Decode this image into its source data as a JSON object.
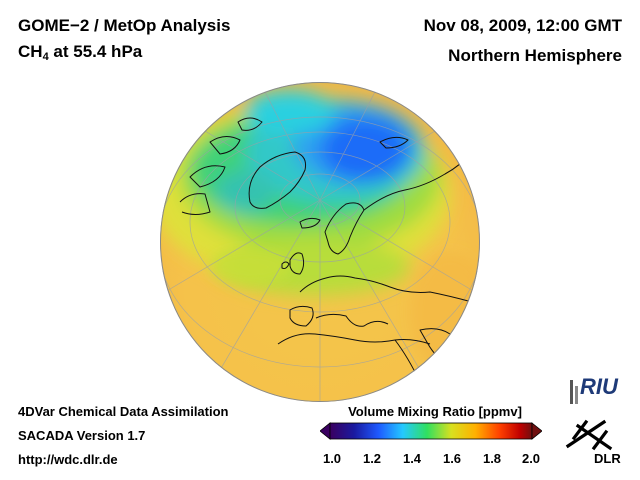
{
  "header": {
    "title_line1": "GOME−2 / MetOp Analysis",
    "title_line2_prefix": "CH",
    "title_line2_sub": "4",
    "title_line2_suffix": " at 55.4 hPa",
    "date": "Nov 08, 2009, 12:00 GMT",
    "region": "Northern Hemisphere"
  },
  "footer": {
    "line1": "4DVar Chemical Data Assimilation",
    "line2": "SACADA Version 1.7",
    "url": "http://wdc.dlr.de"
  },
  "colorbar": {
    "title": "Volume Mixing Ratio [ppmv]",
    "ticks": [
      "1.0",
      "1.2",
      "1.4",
      "1.6",
      "1.8",
      "2.0"
    ],
    "range": [
      1.0,
      2.0
    ],
    "colors": [
      "#3a0060",
      "#1a1aa0",
      "#1e5aff",
      "#24c8ff",
      "#30e060",
      "#d8e020",
      "#ffb000",
      "#ff4000",
      "#c00000",
      "#701010"
    ]
  },
  "logos": {
    "riu": "RIU",
    "dlr": "DLR"
  }
}
